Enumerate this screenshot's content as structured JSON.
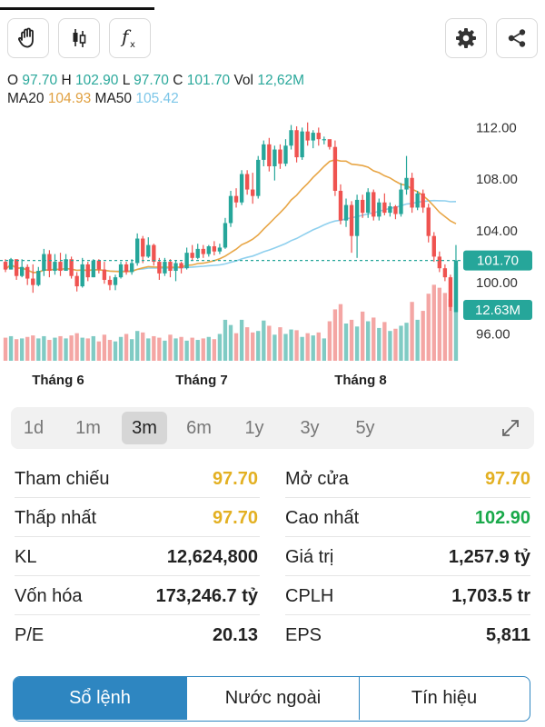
{
  "ohlc": {
    "o_label": "O",
    "o_value": "97.70",
    "h_label": "H",
    "h_value": "102.90",
    "l_label": "L",
    "l_value": "97.70",
    "c_label": "C",
    "c_value": "101.70",
    "vol_label": "Vol",
    "vol_value": "12,62M",
    "ma20_label": "MA20",
    "ma20_value": "104.93",
    "ma50_label": "MA50",
    "ma50_value": "105.42"
  },
  "toolbar": {
    "left_icons": [
      "hand-icon",
      "candlestick-icon",
      "function-icon"
    ],
    "right_icons": [
      "gear-icon",
      "share-icon"
    ]
  },
  "chart_data": {
    "type": "candlestick",
    "ylim": [
      94,
      114
    ],
    "y_ticks": [
      "112.00",
      "108.00",
      "104.00",
      "100.00",
      "96.00"
    ],
    "x_labels": [
      "Tháng 6",
      "Tháng 7",
      "Tháng 8"
    ],
    "price_badge": "101.70",
    "volume_badge": "12.63M",
    "last_price": 101.7,
    "colors": {
      "up": "#26a69a",
      "down": "#ef5350",
      "ma20": "#e8a646",
      "ma50": "#8fd0ee"
    },
    "candles": [
      [
        101.6,
        101.8,
        100.8,
        101.0
      ],
      [
        101.0,
        101.9,
        101.0,
        101.8
      ],
      [
        101.8,
        101.8,
        100.2,
        100.5
      ],
      [
        100.5,
        101.8,
        100.4,
        101.2
      ],
      [
        101.2,
        101.4,
        99.8,
        100.3
      ],
      [
        100.3,
        101.4,
        99.2,
        99.8
      ],
      [
        99.8,
        101.2,
        99.7,
        100.9
      ],
      [
        100.9,
        102.6,
        100.5,
        102.2
      ],
      [
        102.2,
        102.5,
        100.4,
        100.9
      ],
      [
        100.9,
        102.2,
        100.6,
        101.6
      ],
      [
        101.6,
        102.3,
        100.5,
        100.9
      ],
      [
        100.9,
        102.2,
        100.9,
        101.8
      ],
      [
        101.8,
        102.0,
        100.3,
        100.5
      ],
      [
        100.5,
        100.8,
        99.3,
        99.7
      ],
      [
        99.7,
        101.9,
        99.6,
        101.4
      ],
      [
        101.4,
        101.6,
        100.1,
        100.4
      ],
      [
        100.4,
        101.8,
        100.4,
        101.7
      ],
      [
        101.7,
        101.8,
        100.7,
        101.0
      ],
      [
        101.0,
        101.6,
        99.9,
        100.2
      ],
      [
        100.2,
        100.5,
        99.4,
        99.8
      ],
      [
        99.8,
        100.6,
        99.4,
        100.4
      ],
      [
        100.4,
        101.6,
        100.3,
        101.4
      ],
      [
        101.4,
        101.6,
        100.6,
        100.8
      ],
      [
        100.8,
        101.8,
        100.6,
        101.5
      ],
      [
        101.5,
        103.8,
        101.3,
        103.4
      ],
      [
        103.4,
        103.6,
        101.5,
        102.0
      ],
      [
        102.0,
        103.5,
        101.9,
        102.9
      ],
      [
        102.9,
        103.0,
        101.3,
        101.6
      ],
      [
        101.6,
        101.9,
        100.2,
        100.7
      ],
      [
        100.7,
        101.9,
        100.5,
        101.6
      ],
      [
        101.6,
        101.8,
        100.4,
        100.9
      ],
      [
        100.9,
        101.7,
        100.1,
        101.5
      ],
      [
        101.5,
        101.6,
        100.7,
        101.1
      ],
      [
        101.1,
        102.7,
        101.0,
        102.3
      ],
      [
        102.3,
        102.9,
        101.7,
        101.9
      ],
      [
        101.9,
        103.0,
        101.8,
        102.6
      ],
      [
        102.6,
        102.9,
        101.9,
        102.2
      ],
      [
        102.2,
        102.9,
        102.0,
        102.8
      ],
      [
        102.8,
        103.2,
        102.1,
        102.4
      ],
      [
        102.4,
        103.0,
        102.2,
        102.7
      ],
      [
        102.7,
        105.0,
        102.6,
        104.6
      ],
      [
        104.6,
        107.1,
        104.3,
        106.7
      ],
      [
        106.7,
        107.3,
        105.8,
        106.2
      ],
      [
        106.2,
        108.7,
        106.0,
        108.4
      ],
      [
        108.4,
        108.7,
        106.8,
        107.2
      ],
      [
        107.2,
        108.5,
        106.1,
        106.7
      ],
      [
        106.7,
        109.8,
        106.5,
        109.5
      ],
      [
        109.5,
        111.0,
        109.0,
        110.7
      ],
      [
        110.7,
        111.2,
        108.6,
        109.0
      ],
      [
        109.0,
        110.6,
        107.9,
        110.3
      ],
      [
        110.3,
        110.7,
        108.8,
        109.2
      ],
      [
        109.2,
        111.1,
        109.0,
        110.6
      ],
      [
        110.6,
        112.2,
        110.3,
        111.8
      ],
      [
        111.8,
        112.1,
        109.3,
        109.7
      ],
      [
        109.7,
        112.0,
        109.5,
        111.7
      ],
      [
        111.7,
        112.4,
        110.6,
        111.0
      ],
      [
        111.0,
        111.8,
        110.4,
        111.6
      ],
      [
        111.6,
        112.0,
        110.6,
        111.1
      ],
      [
        111.1,
        111.3,
        110.7,
        111.1
      ],
      [
        111.1,
        110.9,
        110.3,
        110.5
      ],
      [
        110.5,
        111.0,
        106.7,
        107.1
      ],
      [
        107.1,
        107.6,
        104.5,
        104.8
      ],
      [
        104.8,
        106.5,
        104.3,
        106.0
      ],
      [
        106.0,
        106.3,
        102.3,
        103.6
      ],
      [
        103.6,
        106.8,
        101.9,
        106.4
      ],
      [
        106.4,
        106.8,
        105.0,
        105.4
      ],
      [
        105.4,
        107.3,
        105.0,
        107.0
      ],
      [
        107.0,
        107.2,
        104.8,
        105.1
      ],
      [
        105.1,
        106.5,
        104.8,
        106.2
      ],
      [
        106.2,
        106.9,
        105.2,
        105.4
      ],
      [
        105.4,
        106.2,
        105.1,
        105.9
      ],
      [
        105.9,
        106.0,
        104.9,
        105.3
      ],
      [
        105.3,
        107.7,
        105.1,
        107.2
      ],
      [
        107.2,
        109.8,
        106.8,
        108.1
      ],
      [
        108.1,
        108.5,
        105.4,
        105.8
      ],
      [
        105.8,
        107.1,
        105.6,
        106.9
      ],
      [
        106.9,
        107.2,
        105.4,
        105.8
      ],
      [
        105.8,
        106.1,
        103.1,
        103.6
      ],
      [
        103.6,
        103.9,
        101.6,
        102.0
      ],
      [
        102.0,
        102.4,
        100.8,
        101.1
      ],
      [
        101.1,
        101.4,
        100.1,
        100.4
      ],
      [
        100.4,
        100.6,
        97.8,
        98.1
      ],
      [
        97.7,
        102.9,
        97.7,
        101.7
      ]
    ],
    "volumes": [
      3.1,
      3.3,
      2.9,
      3.0,
      3.2,
      3.4,
      3.0,
      3.3,
      2.8,
      3.1,
      3.3,
      3.0,
      3.4,
      3.7,
      3.1,
      3.0,
      3.3,
      2.6,
      3.5,
      2.8,
      2.6,
      3.2,
      3.6,
      2.9,
      4.0,
      3.8,
      3.0,
      3.3,
      3.1,
      2.7,
      3.5,
      3.0,
      3.2,
      2.7,
      3.1,
      2.8,
      3.0,
      3.2,
      2.9,
      3.6,
      5.5,
      4.8,
      3.7,
      5.5,
      4.5,
      3.8,
      4.0,
      5.4,
      4.7,
      3.5,
      4.5,
      3.6,
      4.2,
      4.1,
      3.2,
      3.7,
      3.4,
      3.8,
      3.0,
      5.3,
      6.9,
      7.6,
      5.0,
      5.5,
      4.6,
      6.6,
      5.3,
      5.8,
      4.4,
      5.2,
      4.0,
      4.3,
      4.7,
      5.1,
      7.9,
      5.5,
      6.7,
      9.0,
      10.2,
      9.8,
      9.1,
      8.3,
      12.6
    ]
  },
  "time_ranges": [
    "1d",
    "1m",
    "3m",
    "6m",
    "1y",
    "3y",
    "5y"
  ],
  "active_range": "3m",
  "stats": [
    {
      "label": "Tham chiếu",
      "value": "97.70",
      "label2": "Mở cửa",
      "value2": "97.70"
    },
    {
      "label": "Thấp nhất",
      "value": "97.70",
      "label2": "Cao nhất",
      "value2": "102.90"
    },
    {
      "label": "KL",
      "value": "12,624,800",
      "label2": "Giá trị",
      "value2": "1,257.9 tỷ"
    },
    {
      "label": "Vốn hóa",
      "value": "173,246.7 tỷ",
      "label2": "CPLH",
      "value2": "1,703.5 tr"
    },
    {
      "label": "P/E",
      "value": "20.13",
      "label2": "EPS",
      "value2": "5,811"
    }
  ],
  "tabs": [
    "Sổ lệnh",
    "Nước ngoài",
    "Tín hiệu"
  ],
  "active_tab": "Sổ lệnh"
}
